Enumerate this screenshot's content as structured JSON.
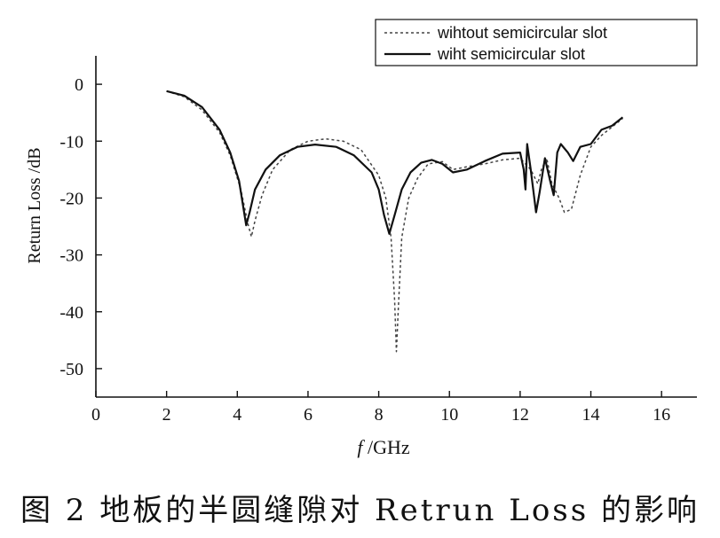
{
  "chart_data": {
    "type": "line",
    "xlabel_italic": "f",
    "xlabel": "/GHz",
    "ylabel": "Return Loss /dB",
    "xlim": [
      0,
      17
    ],
    "ylim": [
      -55,
      5
    ],
    "xticks": [
      0,
      2,
      4,
      6,
      8,
      10,
      12,
      14,
      16
    ],
    "yticks": [
      0,
      -10,
      -20,
      -30,
      -40,
      -50
    ],
    "grid": false,
    "legend_position": "top-right",
    "series": [
      {
        "name": "wihtout semicircular slot",
        "style": "dashed",
        "color": "#444444",
        "points": [
          [
            2.0,
            -1.2
          ],
          [
            2.5,
            -2.2
          ],
          [
            3.0,
            -4.5
          ],
          [
            3.5,
            -8.5
          ],
          [
            3.8,
            -12.5
          ],
          [
            4.1,
            -18.5
          ],
          [
            4.3,
            -24.5
          ],
          [
            4.4,
            -26.8
          ],
          [
            4.5,
            -24.0
          ],
          [
            4.7,
            -19.5
          ],
          [
            5.0,
            -15.0
          ],
          [
            5.5,
            -11.5
          ],
          [
            6.0,
            -10.0
          ],
          [
            6.5,
            -9.6
          ],
          [
            7.0,
            -10.0
          ],
          [
            7.5,
            -11.5
          ],
          [
            8.0,
            -16.0
          ],
          [
            8.2,
            -20.0
          ],
          [
            8.35,
            -27.0
          ],
          [
            8.45,
            -38.0
          ],
          [
            8.5,
            -47.0
          ],
          [
            8.55,
            -40.0
          ],
          [
            8.65,
            -27.0
          ],
          [
            8.85,
            -20.0
          ],
          [
            9.1,
            -16.5
          ],
          [
            9.4,
            -14.0
          ],
          [
            9.8,
            -13.6
          ],
          [
            10.1,
            -15.0
          ],
          [
            10.5,
            -14.5
          ],
          [
            11.0,
            -14.0
          ],
          [
            11.5,
            -13.3
          ],
          [
            12.0,
            -13.0
          ],
          [
            12.3,
            -15.0
          ],
          [
            12.5,
            -17.5
          ],
          [
            12.6,
            -15.0
          ],
          [
            12.75,
            -13.0
          ],
          [
            12.9,
            -17.5
          ],
          [
            13.1,
            -20.0
          ],
          [
            13.25,
            -22.5
          ],
          [
            13.45,
            -22.0
          ],
          [
            13.7,
            -16.0
          ],
          [
            14.0,
            -11.0
          ],
          [
            14.3,
            -9.0
          ],
          [
            14.6,
            -7.5
          ],
          [
            14.9,
            -6.0
          ]
        ]
      },
      {
        "name": "wiht semicircular slot",
        "style": "solid",
        "color": "#111111",
        "points": [
          [
            2.0,
            -1.2
          ],
          [
            2.5,
            -2.0
          ],
          [
            3.0,
            -4.0
          ],
          [
            3.5,
            -8.0
          ],
          [
            3.8,
            -12.0
          ],
          [
            4.05,
            -17.0
          ],
          [
            4.25,
            -24.8
          ],
          [
            4.35,
            -22.5
          ],
          [
            4.5,
            -18.5
          ],
          [
            4.8,
            -15.0
          ],
          [
            5.2,
            -12.5
          ],
          [
            5.7,
            -11.0
          ],
          [
            6.2,
            -10.6
          ],
          [
            6.8,
            -11.0
          ],
          [
            7.3,
            -12.5
          ],
          [
            7.8,
            -15.5
          ],
          [
            8.0,
            -18.5
          ],
          [
            8.15,
            -23.0
          ],
          [
            8.3,
            -26.3
          ],
          [
            8.45,
            -23.0
          ],
          [
            8.65,
            -18.5
          ],
          [
            8.9,
            -15.5
          ],
          [
            9.2,
            -13.8
          ],
          [
            9.5,
            -13.3
          ],
          [
            9.8,
            -14.0
          ],
          [
            10.1,
            -15.5
          ],
          [
            10.5,
            -15.0
          ],
          [
            11.0,
            -13.5
          ],
          [
            11.5,
            -12.2
          ],
          [
            12.0,
            -12.0
          ],
          [
            12.1,
            -15.0
          ],
          [
            12.15,
            -18.5
          ],
          [
            12.2,
            -10.5
          ],
          [
            12.3,
            -15.0
          ],
          [
            12.45,
            -22.5
          ],
          [
            12.55,
            -19.0
          ],
          [
            12.7,
            -13.0
          ],
          [
            12.85,
            -17.0
          ],
          [
            12.95,
            -19.5
          ],
          [
            13.05,
            -12.0
          ],
          [
            13.15,
            -10.5
          ],
          [
            13.35,
            -12.0
          ],
          [
            13.5,
            -13.5
          ],
          [
            13.7,
            -11.0
          ],
          [
            14.0,
            -10.5
          ],
          [
            14.3,
            -8.0
          ],
          [
            14.6,
            -7.3
          ],
          [
            14.9,
            -5.8
          ]
        ]
      }
    ]
  },
  "caption": "图 2  地板的半圆缝隙对 Retrun Loss 的影响"
}
